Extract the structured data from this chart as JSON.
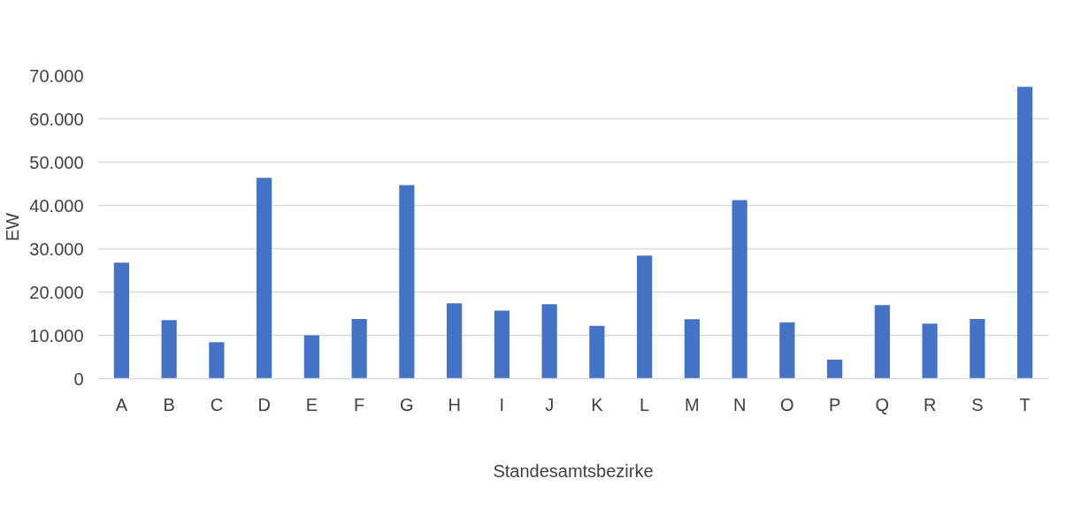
{
  "chart_data": {
    "type": "bar",
    "xlabel": "Standesamtsbezirke",
    "ylabel": "EW",
    "categories": [
      "A",
      "B",
      "C",
      "D",
      "E",
      "F",
      "G",
      "H",
      "I",
      "J",
      "K",
      "L",
      "M",
      "N",
      "O",
      "P",
      "Q",
      "R",
      "S",
      "T"
    ],
    "values": [
      26800,
      13500,
      8400,
      46400,
      10000,
      13800,
      44700,
      17400,
      15700,
      17200,
      12200,
      28400,
      13700,
      41200,
      13000,
      4400,
      17000,
      12700,
      13800,
      67400
    ],
    "color": "#4472c4",
    "ylim": [
      0,
      70000
    ],
    "yticks": [
      {
        "value": 0,
        "label": "0"
      },
      {
        "value": 10000,
        "label": "10.000"
      },
      {
        "value": 20000,
        "label": "20.000"
      },
      {
        "value": 30000,
        "label": "30.000"
      },
      {
        "value": 40000,
        "label": "40.000"
      },
      {
        "value": 50000,
        "label": "50.000"
      },
      {
        "value": 60000,
        "label": "60.000"
      },
      {
        "value": 70000,
        "label": "70.000"
      }
    ],
    "grid": "y"
  }
}
